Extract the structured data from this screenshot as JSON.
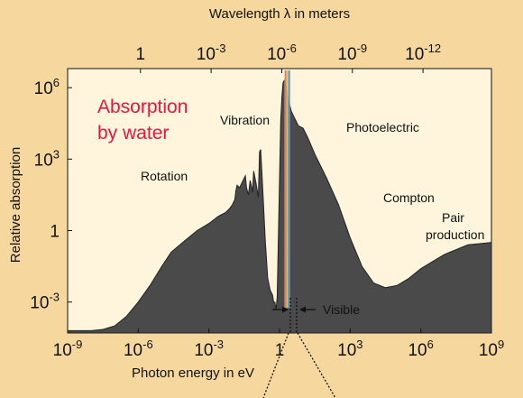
{
  "chart_data": {
    "type": "area",
    "title": "Absorption by water",
    "xlabel": "Photon energy in eV",
    "ylabel": "Relative absorption",
    "top_axis_label": "Wavelength λ in meters",
    "x_scale": "log",
    "y_scale": "log",
    "xlim_exponent": [
      -9,
      9
    ],
    "ylim_exponent": [
      -4.3,
      6.8
    ],
    "grid": false,
    "bottom_ticks": [
      {
        "base": "10",
        "exp": "-9",
        "value_exp": -9
      },
      {
        "base": "10",
        "exp": "-6",
        "value_exp": -6
      },
      {
        "base": "10",
        "exp": "-3",
        "value_exp": -3
      },
      {
        "base": "1",
        "exp": "",
        "value_exp": 0
      },
      {
        "base": "10",
        "exp": "3",
        "value_exp": 3
      },
      {
        "base": "10",
        "exp": "6",
        "value_exp": 6
      },
      {
        "base": "10",
        "exp": "9",
        "value_exp": 9
      }
    ],
    "top_ticks": [
      {
        "base": "1",
        "exp": "",
        "value_exp": -5.906
      },
      {
        "base": "10",
        "exp": "-3",
        "value_exp": -2.906
      },
      {
        "base": "10",
        "exp": "-6",
        "value_exp": 0.094
      },
      {
        "base": "10",
        "exp": "-9",
        "value_exp": 3.094
      },
      {
        "base": "10",
        "exp": "-12",
        "value_exp": 6.094
      }
    ],
    "left_ticks": [
      {
        "base": "10",
        "exp": "6",
        "value_exp": 6
      },
      {
        "base": "10",
        "exp": "3",
        "value_exp": 3
      },
      {
        "base": "1",
        "exp": "",
        "value_exp": 0
      },
      {
        "base": "10",
        "exp": "-3",
        "value_exp": -3
      }
    ],
    "series": [
      {
        "x_log10_eV": [
          -9,
          -8,
          -7.5,
          -7,
          -6.5,
          -6,
          -5.5,
          -5,
          -4.6,
          -4,
          -3.5,
          -3,
          -2.6,
          -2.4,
          -2.3,
          -2.2,
          -2.1,
          -2.0,
          -1.9,
          -1.85,
          -1.8,
          -1.7,
          -1.6,
          -1.5,
          -1.45,
          -1.4,
          -1.32,
          -1.25,
          -1.2,
          -1.15,
          -1.1,
          -1.0,
          -0.9,
          -0.85,
          -0.8,
          -0.7,
          -0.6,
          -0.5,
          -0.4,
          -0.3,
          -0.25,
          -0.2,
          -0.15,
          -0.1,
          0.05,
          0.1,
          0.15,
          0.2,
          0.25,
          0.3,
          0.4,
          0.5,
          0.6,
          0.7,
          0.8,
          1,
          1.2,
          1.5,
          2,
          2.5,
          3,
          3.5,
          4,
          4.5,
          5,
          5.5,
          6,
          6.5,
          7,
          8,
          9
        ],
        "y_log10": [
          -4.2,
          -4.2,
          -4.15,
          -4.0,
          -3.6,
          -3.0,
          -2.3,
          -1.5,
          -0.9,
          -0.4,
          0.0,
          0.3,
          0.6,
          0.7,
          0.75,
          0.85,
          0.95,
          1.1,
          1.3,
          1.7,
          1.9,
          1.8,
          2.0,
          2.2,
          2.3,
          1.8,
          1.5,
          2.1,
          1.9,
          1.6,
          2.5,
          2.0,
          1.4,
          3.3,
          3.4,
          1.5,
          -0.5,
          -2.0,
          -2.5,
          -2.7,
          -3.0,
          -3.0,
          -3.3,
          -2.8,
          4.6,
          5.6,
          6.2,
          6.3,
          6.2,
          6.0,
          5.4,
          5.0,
          4.8,
          4.6,
          4.4,
          4.3,
          3.9,
          3.2,
          2.2,
          1.1,
          -0.3,
          -1.5,
          -2.2,
          -2.4,
          -2.3,
          -2.0,
          -1.6,
          -1.3,
          -1.0,
          -0.6,
          -0.5
        ]
      }
    ],
    "visible_colors": [
      "#e8a089",
      "#e84d4d",
      "#f2e66a",
      "#7fd06f",
      "#5a9fdd",
      "#8a7acb"
    ],
    "visible_x_log10_eV": [
      0.21,
      0.45
    ],
    "annotations": [
      {
        "text": "Absorption",
        "line": 1
      },
      {
        "text": "by water",
        "line": 2
      },
      {
        "text": "Vibration"
      },
      {
        "text": "Rotation"
      },
      {
        "text": "Photoelectric"
      },
      {
        "text": "Compton"
      },
      {
        "text": "Pair"
      },
      {
        "text": "production"
      },
      {
        "text": "Visible"
      }
    ],
    "colors": {
      "background": "#f6d89e",
      "plot_area": "#fff5dc",
      "fill": "#4a4a4a",
      "highlight_text": "#e5173f"
    }
  }
}
